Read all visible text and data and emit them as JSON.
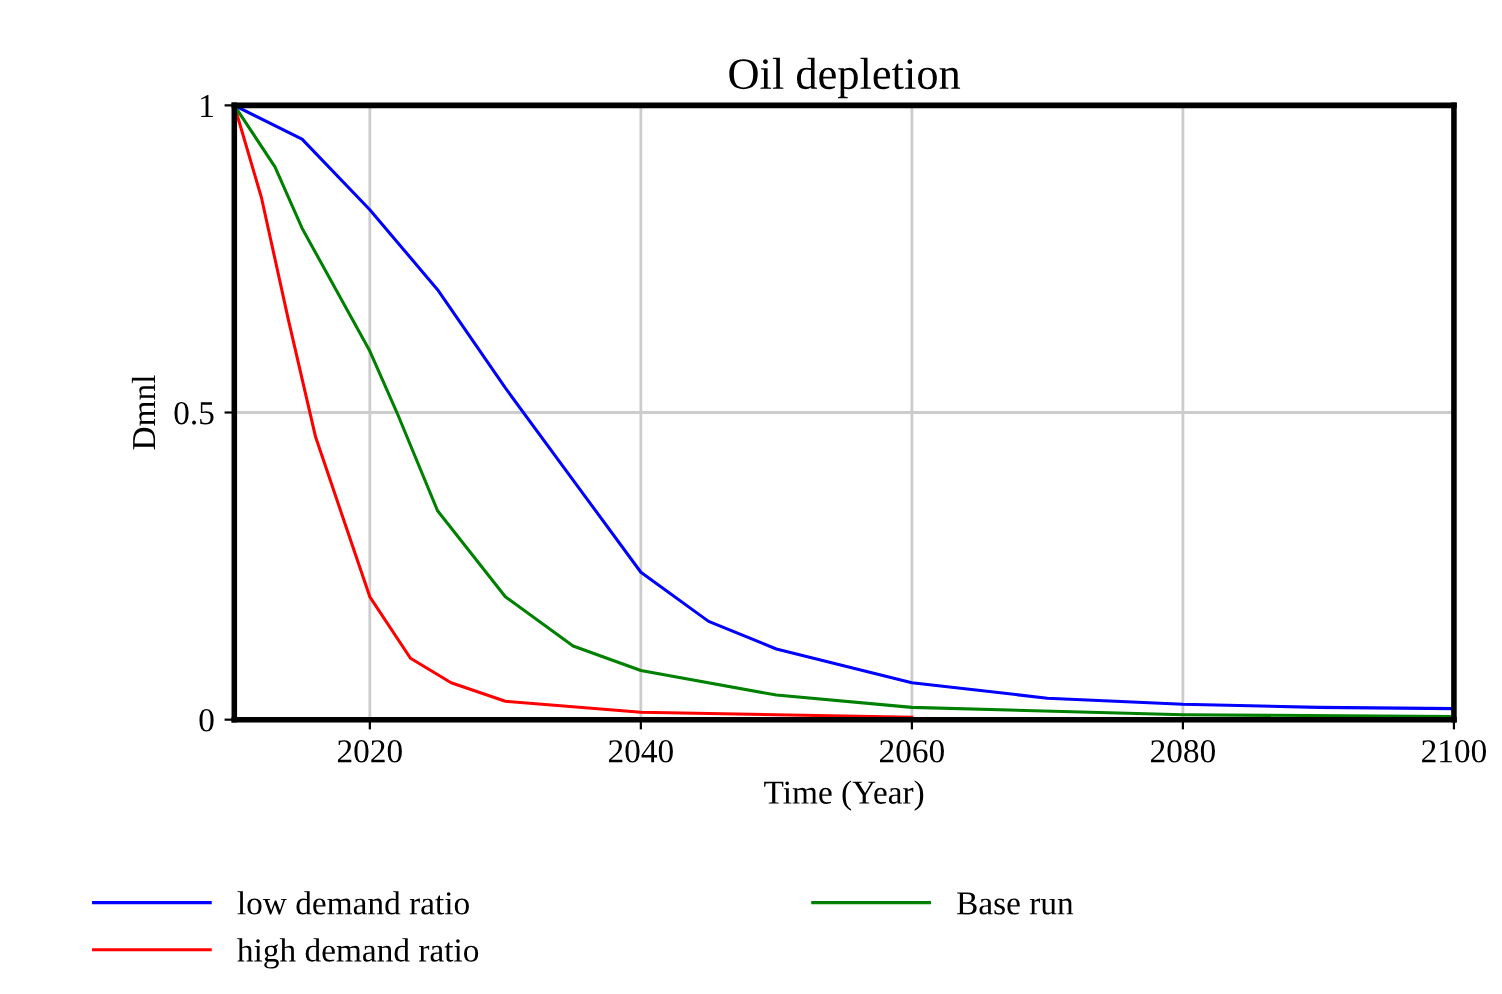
{
  "chart_data": {
    "type": "line",
    "title": "Oil depletion",
    "xlabel": "Time (Year)",
    "ylabel": "Dmnl",
    "xlim": [
      2010,
      2100
    ],
    "xticks": [
      2020,
      2040,
      2060,
      2080,
      2100
    ],
    "ylim": [
      0,
      1
    ],
    "yticks": [
      0,
      0.5,
      1
    ],
    "grid": true,
    "legend": "bottom",
    "marker": "none",
    "line_style": "solid",
    "series": [
      {
        "name": "low demand ratio",
        "color": "#0000ff",
        "x": [
          2010,
          2015,
          2020,
          2025,
          2030,
          2035,
          2040,
          2045,
          2050,
          2060,
          2070,
          2080,
          2090,
          2100
        ],
        "values": [
          1,
          0.945,
          0.83,
          0.7,
          0.54,
          0.39,
          0.24,
          0.16,
          0.115,
          0.06,
          0.035,
          0.025,
          0.02,
          0.018
        ]
      },
      {
        "name": "high demand ratio",
        "color": "#ff0000",
        "x": [
          2010,
          2012,
          2014,
          2016,
          2018,
          2020,
          2023,
          2026,
          2030,
          2040,
          2060
        ],
        "values": [
          1,
          0.85,
          0.65,
          0.46,
          0.33,
          0.2,
          0.1,
          0.06,
          0.03,
          0.012,
          0.004
        ]
      },
      {
        "name": "Base run",
        "color": "#008000",
        "x": [
          2010,
          2013,
          2015,
          2020,
          2022,
          2025,
          2030,
          2035,
          2040,
          2050,
          2060,
          2080,
          2100
        ],
        "values": [
          1,
          0.9,
          0.8,
          0.6,
          0.5,
          0.34,
          0.2,
          0.12,
          0.08,
          0.04,
          0.02,
          0.008,
          0.005
        ]
      }
    ]
  }
}
